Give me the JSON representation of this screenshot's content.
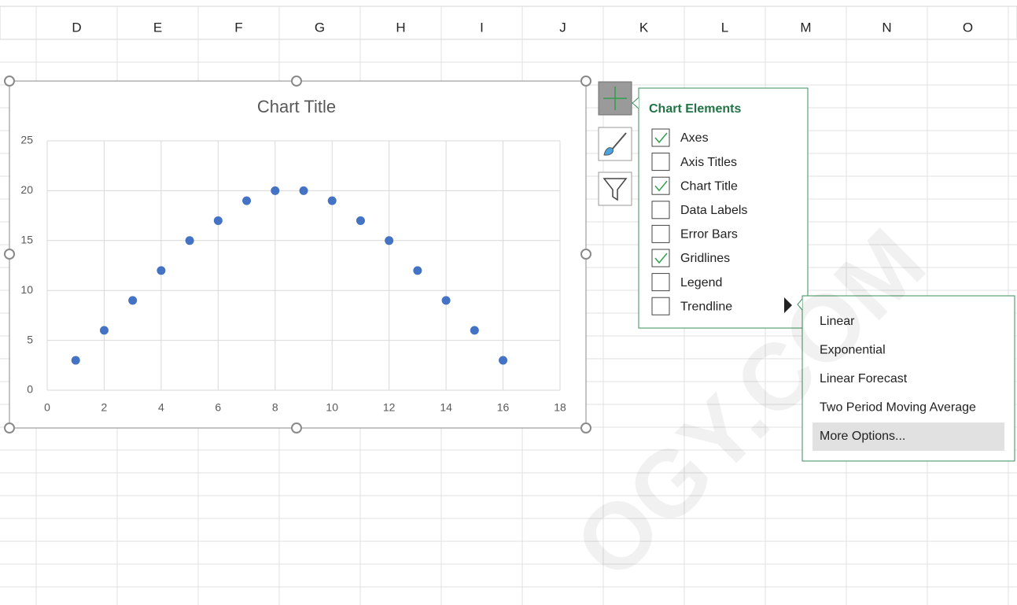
{
  "columns": [
    "D",
    "E",
    "F",
    "G",
    "H",
    "I",
    "J",
    "K",
    "L",
    "M",
    "N",
    "O"
  ],
  "chart_data": {
    "type": "scatter",
    "title": "Chart Title",
    "x": [
      1,
      2,
      3,
      4,
      5,
      6,
      7,
      8,
      9,
      10,
      11,
      12,
      13,
      14,
      15,
      16
    ],
    "values": [
      3,
      6,
      9,
      12,
      15,
      17,
      19,
      20,
      20,
      19,
      17,
      15,
      12,
      9,
      6,
      3
    ],
    "color": "#4472c4",
    "xlim": [
      0,
      18
    ],
    "xticks": [
      0,
      2,
      4,
      6,
      8,
      10,
      12,
      14,
      16,
      18
    ],
    "ylim": [
      0,
      25
    ],
    "yticks": [
      0,
      5,
      10,
      15,
      20,
      25
    ],
    "grid": true
  },
  "chart_elements": {
    "title": "Chart Elements",
    "items": [
      {
        "label": "Axes",
        "checked": true
      },
      {
        "label": "Axis Titles",
        "checked": false
      },
      {
        "label": "Chart Title",
        "checked": true
      },
      {
        "label": "Data Labels",
        "checked": false
      },
      {
        "label": "Error Bars",
        "checked": false
      },
      {
        "label": "Gridlines",
        "checked": true
      },
      {
        "label": "Legend",
        "checked": false
      },
      {
        "label": "Trendline",
        "checked": false
      }
    ]
  },
  "trendline_menu": {
    "items": [
      {
        "label": "Linear"
      },
      {
        "label": "Exponential"
      },
      {
        "label": "Linear Forecast"
      },
      {
        "label": "Two Period Moving Average"
      },
      {
        "label": "More Options...",
        "highlighted": true
      }
    ]
  },
  "watermark": "OGY.COM"
}
